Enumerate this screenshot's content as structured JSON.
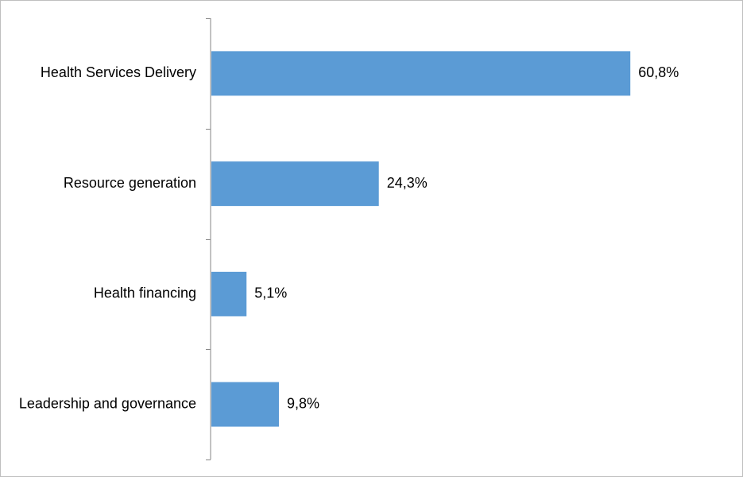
{
  "chart_data": {
    "type": "bar",
    "orientation": "horizontal",
    "categories": [
      "Health Services Delivery",
      "Resource generation",
      "Health financing",
      "Leadership and governance"
    ],
    "values": [
      60.8,
      24.3,
      5.1,
      9.8
    ],
    "value_labels": [
      "60,8%",
      "24,3%",
      "5,1%",
      "9,8%"
    ],
    "unit": "%",
    "title": "",
    "xlabel": "",
    "ylabel": "",
    "xlim": [
      0,
      73
    ],
    "grid": false,
    "legend": "none",
    "bar_color": "#5b9bd5",
    "axis_color": "#868686"
  }
}
